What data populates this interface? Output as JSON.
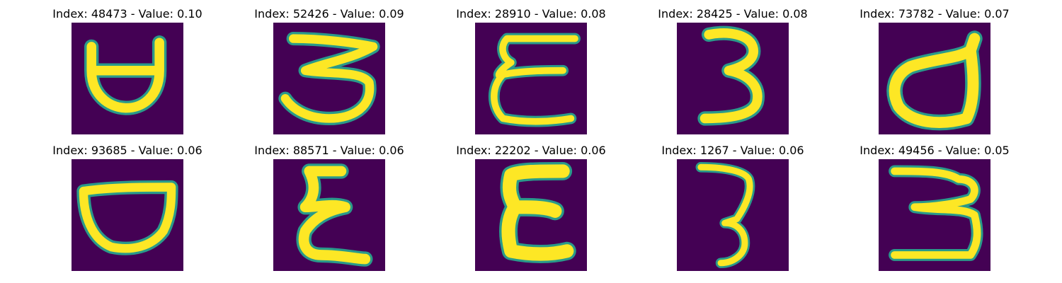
{
  "colors": {
    "background": "#440154",
    "mid": "#2a9a8a",
    "stroke": "#fde725"
  },
  "panels": [
    {
      "title": "Index: 48473 - Value: 0.10",
      "glyph": "d-shape"
    },
    {
      "title": "Index: 52426 - Value: 0.09",
      "glyph": "three-wide"
    },
    {
      "title": "Index: 28910 - Value: 0.08",
      "glyph": "epsilon-flat"
    },
    {
      "title": "Index: 28425 - Value: 0.08",
      "glyph": "three-tall"
    },
    {
      "title": "Index: 73782 - Value: 0.07",
      "glyph": "d-shape-round"
    },
    {
      "title": "Index: 93685 - Value: 0.06",
      "glyph": "cup-shape"
    },
    {
      "title": "Index: 88571 - Value: 0.06",
      "glyph": "epsilon-narrow"
    },
    {
      "title": "Index: 22202 - Value: 0.06",
      "glyph": "epsilon-bold"
    },
    {
      "title": "Index: 1267 - Value: 0.06",
      "glyph": "three-thin"
    },
    {
      "title": "Index: 49456 - Value: 0.05",
      "glyph": "three-wide-2"
    }
  ]
}
